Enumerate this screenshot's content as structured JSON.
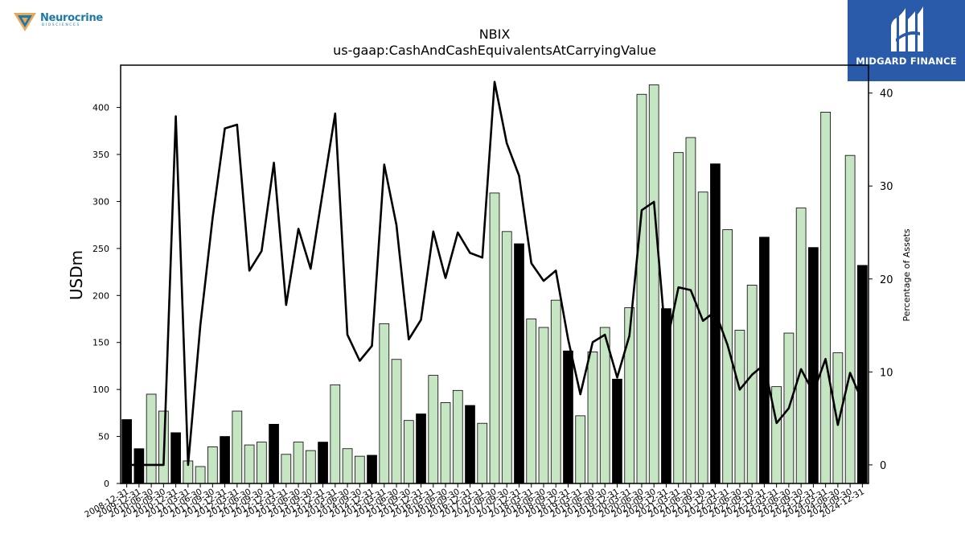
{
  "logos": {
    "left": {
      "name": "Neurocrine",
      "subtitle": "BIOSCIENCES"
    },
    "right": {
      "name": "MIDGARD FINANCE"
    }
  },
  "colors": {
    "bar_light": "#c6e6c3",
    "bar_dark": "#000000",
    "line": "#000000"
  },
  "chart_data": {
    "type": "bar",
    "title": "NBIX",
    "subtitle": "us-gaap:CashAndCashEquivalentsAtCarryingValue",
    "ylabel": "USDm",
    "y2label": "Percentage of Assets",
    "ylim": [
      0,
      445
    ],
    "y2lim": [
      -2,
      43
    ],
    "yticks": [
      0,
      50,
      100,
      150,
      200,
      250,
      300,
      350,
      400
    ],
    "y2ticks": [
      0,
      10,
      20,
      30,
      40
    ],
    "grid": false,
    "categories": [
      "2008-12-31",
      "2009-12-31",
      "2010-06-30",
      "2010-09-30",
      "2010-12-31",
      "2011-03-31",
      "2011-06-30",
      "2011-09-30",
      "2011-12-31",
      "2012-03-31",
      "2012-06-30",
      "2012-09-30",
      "2012-12-31",
      "2013-03-31",
      "2013-06-30",
      "2013-09-30",
      "2013-12-31",
      "2014-03-31",
      "2014-06-30",
      "2014-09-30",
      "2014-12-31",
      "2015-03-31",
      "2015-06-30",
      "2015-09-30",
      "2015-12-31",
      "2016-03-31",
      "2016-06-30",
      "2016-09-30",
      "2016-12-31",
      "2017-03-31",
      "2017-06-30",
      "2017-09-30",
      "2017-12-31",
      "2018-03-31",
      "2018-06-30",
      "2018-09-30",
      "2018-12-31",
      "2019-03-31",
      "2019-06-30",
      "2019-09-30",
      "2019-12-31",
      "2020-03-31",
      "2020-06-30",
      "2020-09-30",
      "2020-12-31",
      "2021-03-31",
      "2021-06-30",
      "2021-09-30",
      "2021-12-31",
      "2022-03-31",
      "2022-06-30",
      "2022-09-30",
      "2022-12-31",
      "2023-03-31",
      "2023-06-30",
      "2023-09-30",
      "2023-12-31",
      "2024-03-31",
      "2024-06-30",
      "2024-09-30",
      "2024-12-31"
    ],
    "xtick_labels": [
      "2008-12-31",
      "2009-12-31",
      "2010-06-30",
      "2010-09-30",
      "2010-12-31",
      "2011-03-31",
      "2011-06-30",
      "2011-09-30",
      "2011-12-31",
      "2012-03-31",
      "2012-06-30",
      "2012-09-30",
      "2012-12-31",
      "2013-03-31",
      "2013-06-30",
      "2013-09-30",
      "2013-12-31",
      "2014-03-31",
      "2014-06-30",
      "2014-09-30",
      "2014-12-31",
      "2015-03-31",
      "2015-06-30",
      "2015-09-30",
      "2015-12-31",
      "2016-03-31",
      "2016-06-30",
      "2016-09-30",
      "2016-12-31",
      "2017-03-31",
      "2017-06-30",
      "2017-09-30",
      "2017-12-31",
      "2018-03-31",
      "2018-06-30",
      "2018-09-30",
      "2018-12-31",
      "2019-03-31",
      "2019-06-30",
      "2019-09-30",
      "2019-12-31",
      "2020-03-31",
      "2020-06-30",
      "2020-09-30",
      "2020-12-31",
      "2021-03-31",
      "2021-06-30",
      "2021-09-30",
      "2021-12-31",
      "2022-03-31",
      "2022-06-30",
      "2022-09-30",
      "2022-12-31",
      "2023-03-31",
      "2023-06-30",
      "2023-09-30",
      "2023-12-31",
      "2024-03-31",
      "2024-06-30",
      "2024-09-30",
      "2024-12-31"
    ],
    "series": [
      {
        "type": "bar",
        "axis": "left",
        "values": [
          68,
          37,
          95,
          77,
          54,
          24,
          18,
          39,
          50,
          77,
          41,
          44,
          63,
          31,
          44,
          35,
          44,
          105,
          37,
          29,
          30,
          170,
          132,
          67,
          74,
          115,
          86,
          99,
          83,
          64,
          309,
          268,
          255,
          175,
          166,
          195,
          141,
          72,
          140,
          166,
          111,
          187,
          414,
          424,
          186,
          352,
          368,
          310,
          340,
          270,
          163,
          211,
          262,
          103,
          160,
          293,
          251,
          395,
          139,
          349,
          232
        ],
        "highlight": [
          true,
          true,
          false,
          false,
          true,
          false,
          false,
          false,
          true,
          false,
          false,
          false,
          true,
          false,
          false,
          false,
          true,
          false,
          false,
          false,
          true,
          false,
          false,
          false,
          true,
          false,
          false,
          false,
          true,
          false,
          false,
          false,
          true,
          false,
          false,
          false,
          true,
          false,
          false,
          false,
          true,
          false,
          false,
          false,
          true,
          false,
          false,
          false,
          true,
          false,
          false,
          false,
          true,
          false,
          false,
          false,
          true,
          false,
          false,
          false,
          true
        ]
      },
      {
        "type": "line",
        "axis": "right",
        "values": [
          0,
          0,
          0,
          0,
          37.5,
          0,
          15,
          26.5,
          36.2,
          36.6,
          20.9,
          23,
          32.5,
          17.2,
          25.4,
          21.1,
          29.5,
          37.8,
          14,
          11.2,
          12.8,
          32.3,
          25.8,
          13.5,
          15.6,
          25.1,
          20.1,
          25,
          22.8,
          22.3,
          41.2,
          34.6,
          31.1,
          21.7,
          19.8,
          20.9,
          13.5,
          7.6,
          13.2,
          14,
          9.4,
          13.9,
          27.4,
          28.3,
          12.8,
          19.1,
          18.8,
          15.5,
          16.5,
          12.9,
          8.1,
          9.7,
          10.8,
          4.5,
          6.1,
          10.3,
          7.8,
          11.4,
          4.3,
          9.9,
          6.8
        ]
      }
    ]
  }
}
